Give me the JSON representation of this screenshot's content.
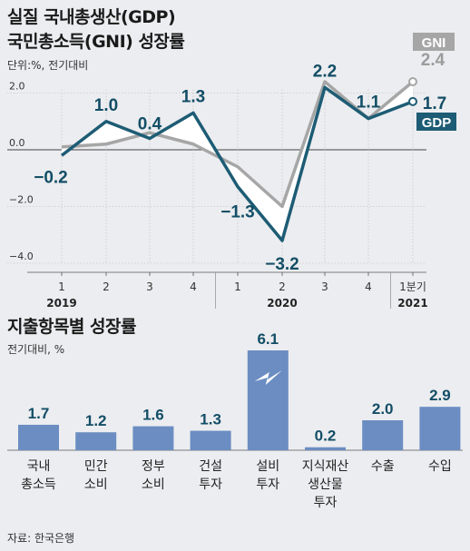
{
  "header": {
    "title_line1": "실질 국내총생산(GDP)",
    "title_line2": "국민총소득(GNI) 성장률",
    "unit": "단위:%, 전기대비"
  },
  "chart_data": [
    {
      "type": "line",
      "x": [
        "1",
        "2",
        "3",
        "4",
        "1",
        "2",
        "3",
        "4",
        "1분기"
      ],
      "year_labels": [
        {
          "label": "2019",
          "index": 0
        },
        {
          "label": "2020",
          "index": 5
        },
        {
          "label": "2021",
          "index": 8
        }
      ],
      "series": [
        {
          "name": "GDP",
          "color": "#1d5c74",
          "values": [
            -0.2,
            1.0,
            0.4,
            1.3,
            -1.3,
            -3.2,
            2.2,
            1.1,
            1.7
          ],
          "labels": [
            "−0.2",
            "1.0",
            "0.4",
            "1.3",
            "−1.3",
            "−3.2",
            "2.2",
            "1.1",
            "1.7"
          ]
        },
        {
          "name": "GNI",
          "color": "#a6a6a6",
          "values": [
            0.1,
            0.2,
            0.6,
            0.2,
            -0.6,
            -2.0,
            2.4,
            1.1,
            2.4
          ],
          "labels": [
            "",
            "",
            "",
            "",
            "",
            "",
            "",
            "",
            "2.4"
          ]
        }
      ],
      "yticks": [
        2.0,
        0.0,
        -2.0,
        -4.0
      ],
      "ytick_labels": [
        "2.0",
        "0.0",
        "−2.0",
        "−4.0"
      ],
      "ylim": [
        -4.0,
        2.6
      ]
    },
    {
      "type": "bar",
      "title": "지출항목별 성장률",
      "unit": "전기대비, %",
      "color": "#6b8dc2",
      "categories": [
        [
          "국내",
          "총소득"
        ],
        [
          "민간",
          "소비"
        ],
        [
          "정부",
          "소비"
        ],
        [
          "건설",
          "투자"
        ],
        [
          "설비",
          "투자"
        ],
        [
          "지식재산",
          "생산물",
          "투자"
        ],
        [
          "수출"
        ],
        [
          "수입"
        ]
      ],
      "values": [
        1.7,
        1.2,
        1.6,
        1.3,
        6.1,
        0.2,
        2.0,
        2.9
      ],
      "labels": [
        "1.7",
        "1.2",
        "1.6",
        "1.3",
        "6.1",
        "0.2",
        "2.0",
        "2.9"
      ],
      "broken_axis_index": 4
    }
  ],
  "footer": {
    "source": "자료: 한국은행"
  }
}
